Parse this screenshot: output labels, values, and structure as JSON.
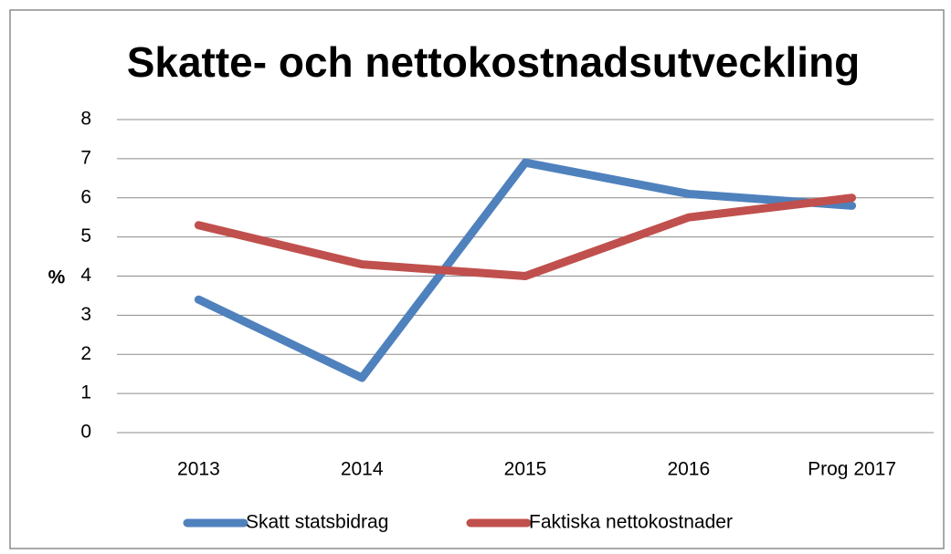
{
  "chart_data": {
    "type": "line",
    "title": "Skatte- och nettokostnadsutveckling",
    "y_label": "%",
    "categories": [
      "2013",
      "2014",
      "2015",
      "2016",
      "Prog 2017"
    ],
    "series": [
      {
        "name": "Skatt statsbidrag",
        "color": "#4f81bd",
        "values": [
          3.4,
          1.4,
          6.9,
          6.1,
          5.8
        ]
      },
      {
        "name": "Faktiska nettokostnader",
        "color": "#c0504d",
        "values": [
          5.3,
          4.3,
          4.0,
          5.5,
          6.0
        ]
      }
    ],
    "ylim": [
      0,
      8
    ],
    "yticks": [
      0,
      1,
      2,
      3,
      4,
      5,
      6,
      7,
      8
    ],
    "grid": true,
    "legend": "bottom"
  }
}
